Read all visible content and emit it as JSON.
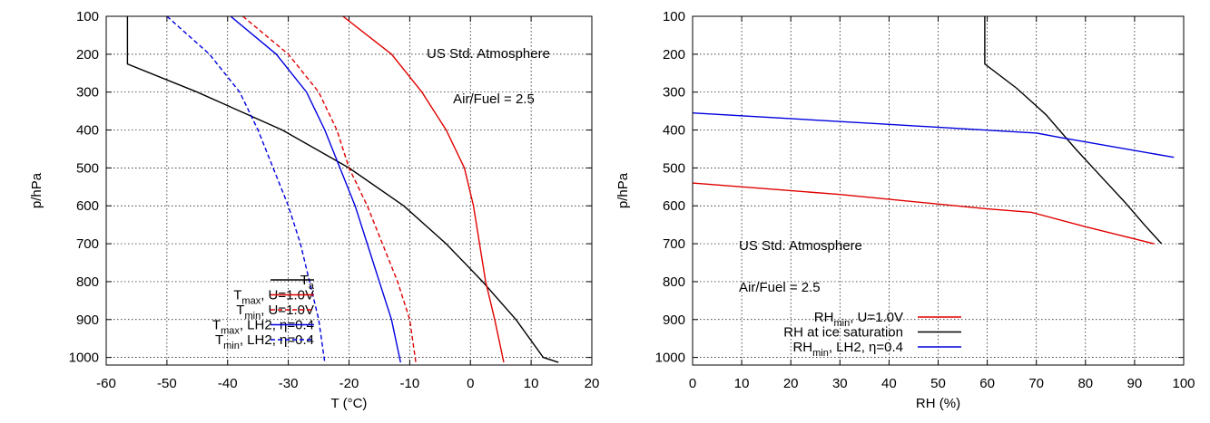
{
  "chart_data": [
    {
      "type": "line",
      "xlabel": "T (°C)",
      "ylabel": "p/hPa",
      "xlim": [
        -60,
        20
      ],
      "ylim": [
        1020,
        100
      ],
      "xticks": [
        -60,
        -50,
        -40,
        -30,
        -20,
        -10,
        0,
        10,
        20
      ],
      "yticks": [
        100,
        200,
        300,
        400,
        500,
        600,
        700,
        800,
        900,
        1000
      ],
      "grid": "dotted",
      "legend_position": "bottom-left",
      "annotations": [
        "US Std. Atmosphere",
        "Air/Fuel = 2.5"
      ],
      "series": [
        {
          "name": "T_a",
          "legend": {
            "main": "T",
            "sub": "a",
            "rest": ""
          },
          "color": "#000000",
          "dash": "solid",
          "points": [
            [
              -56.5,
              100
            ],
            [
              -56.5,
              226
            ],
            [
              -45,
              300
            ],
            [
              -31,
              400
            ],
            [
              -20,
              500
            ],
            [
              -11,
              600
            ],
            [
              -4,
              700
            ],
            [
              2,
              800
            ],
            [
              7.5,
              900
            ],
            [
              12,
              1000
            ],
            [
              14.5,
              1013
            ]
          ]
        },
        {
          "name": "T_max, U=1.0V",
          "legend": {
            "main": "T",
            "sub": "max",
            "rest": ", U=1.0V"
          },
          "color": "#e00000",
          "dash": "solid",
          "points": [
            [
              -21,
              100
            ],
            [
              -13,
              200
            ],
            [
              -8,
              300
            ],
            [
              -4,
              400
            ],
            [
              -1,
              500
            ],
            [
              0.5,
              600
            ],
            [
              1.5,
              700
            ],
            [
              2.5,
              800
            ],
            [
              4,
              900
            ],
            [
              5.5,
              1013
            ]
          ]
        },
        {
          "name": "T_min, U=1.0V",
          "legend": {
            "main": "T",
            "sub": "min",
            "rest": ", U=1.0V"
          },
          "color": "#e00000",
          "dash": "dashed",
          "points": [
            [
              -37.5,
              100
            ],
            [
              -30,
              200
            ],
            [
              -25,
              300
            ],
            [
              -22,
              400
            ],
            [
              -20,
              500
            ],
            [
              -17,
              600
            ],
            [
              -14.5,
              700
            ],
            [
              -12,
              800
            ],
            [
              -10,
              900
            ],
            [
              -9,
              1013
            ]
          ]
        },
        {
          "name": "T_max, LH2, η=0.4",
          "legend": {
            "main": "T",
            "sub": "max",
            "rest": ", LH2, η=0.4"
          },
          "color": "#0000e0",
          "dash": "solid",
          "points": [
            [
              -39.5,
              100
            ],
            [
              -32,
              200
            ],
            [
              -27,
              300
            ],
            [
              -24,
              400
            ],
            [
              -21.5,
              500
            ],
            [
              -19,
              600
            ],
            [
              -17,
              700
            ],
            [
              -15,
              800
            ],
            [
              -13,
              900
            ],
            [
              -11.5,
              1013
            ]
          ]
        },
        {
          "name": "T_min, LH2, η=0.4",
          "legend": {
            "main": "T",
            "sub": "min",
            "rest": ", LH2, η=0.4"
          },
          "color": "#0000e0",
          "dash": "dashed",
          "points": [
            [
              -50,
              100
            ],
            [
              -43,
              200
            ],
            [
              -38,
              300
            ],
            [
              -35,
              400
            ],
            [
              -32.5,
              500
            ],
            [
              -30,
              600
            ],
            [
              -28,
              700
            ],
            [
              -26.5,
              800
            ],
            [
              -25,
              900
            ],
            [
              -24,
              1013
            ]
          ]
        }
      ]
    },
    {
      "type": "line",
      "xlabel": "RH (%)",
      "ylabel": "p/hPa",
      "xlim": [
        0,
        100
      ],
      "ylim": [
        1020,
        100
      ],
      "xticks": [
        0,
        10,
        20,
        30,
        40,
        50,
        60,
        70,
        80,
        90,
        100
      ],
      "yticks": [
        100,
        200,
        300,
        400,
        500,
        600,
        700,
        800,
        900,
        1000
      ],
      "grid": "dotted",
      "legend_position": "bottom-right",
      "annotations": [
        "US Std. Atmosphere",
        "Air/Fuel = 2.5"
      ],
      "series": [
        {
          "name": "RH_min, U=1.0V",
          "legend": {
            "main": "RH",
            "sub": "min",
            "rest": ", U=1.0V"
          },
          "color": "#e00000",
          "dash": "solid",
          "points": [
            [
              0,
              540
            ],
            [
              30,
              570
            ],
            [
              60,
              608
            ],
            [
              69,
              617
            ],
            [
              80,
              655
            ],
            [
              94,
              700
            ]
          ]
        },
        {
          "name": "RH at ice saturation",
          "legend": {
            "main": "RH at ice saturation",
            "sub": "",
            "rest": ""
          },
          "color": "#000000",
          "dash": "solid",
          "points": [
            [
              59.5,
              100
            ],
            [
              59.5,
              226
            ],
            [
              66,
              290
            ],
            [
              72,
              360
            ],
            [
              78,
              450
            ],
            [
              83,
              520
            ],
            [
              88,
              590
            ],
            [
              92,
              650
            ],
            [
              95.5,
              700
            ]
          ]
        },
        {
          "name": "RH_min, LH2, η=0.4",
          "legend": {
            "main": "RH",
            "sub": "min",
            "rest": ", LH2, η=0.4"
          },
          "color": "#0000e0",
          "dash": "solid",
          "points": [
            [
              0,
              355
            ],
            [
              40,
              385
            ],
            [
              70,
              408
            ],
            [
              75,
              420
            ],
            [
              98,
              472
            ]
          ]
        }
      ]
    }
  ]
}
